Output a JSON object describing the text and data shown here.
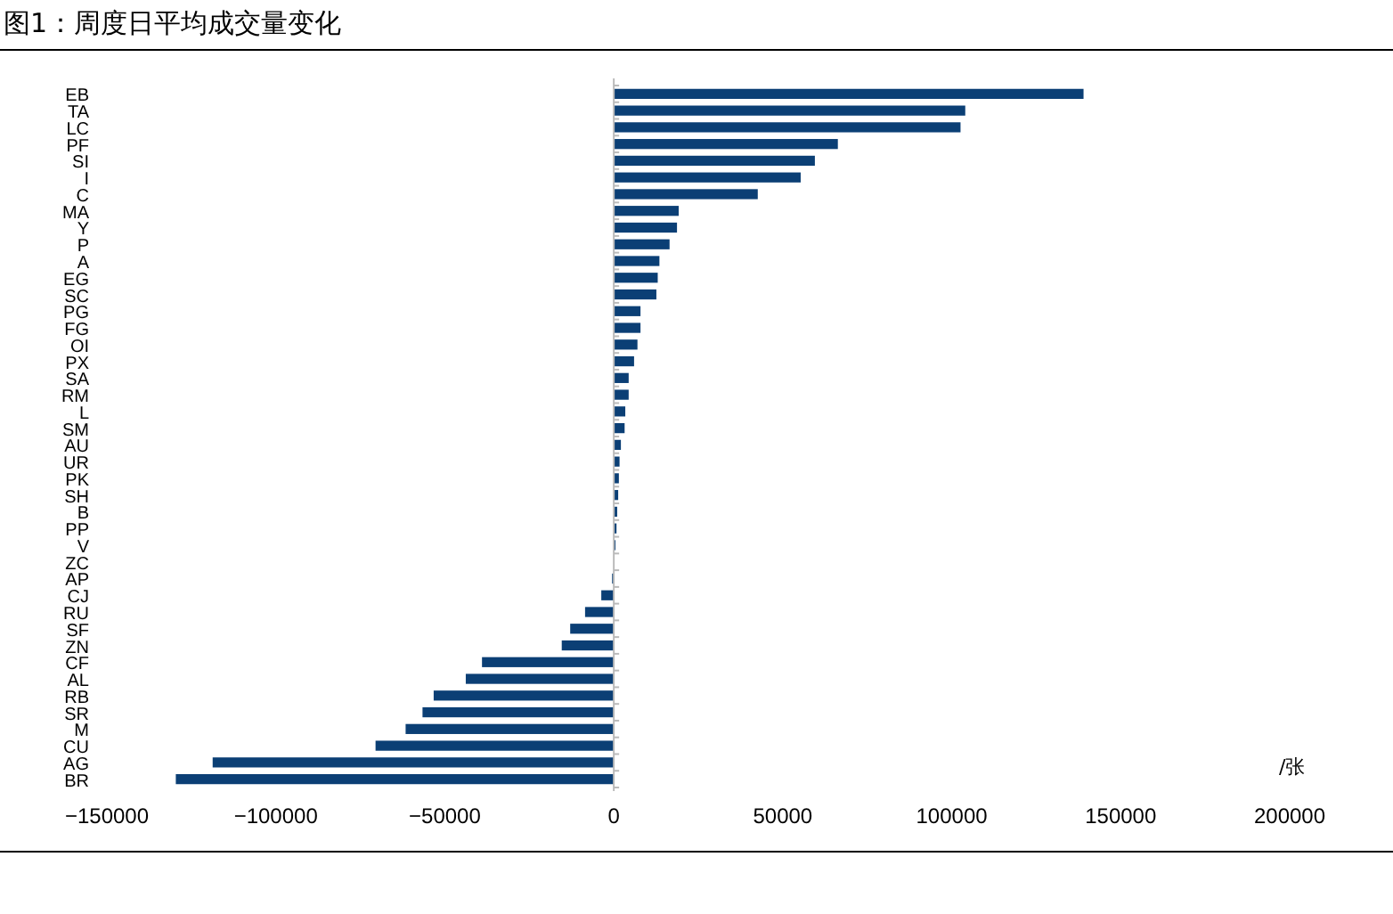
{
  "chart_data": {
    "type": "bar",
    "orientation": "horizontal",
    "title": "图1：周度日平均成交量变化",
    "annotations": [
      "/张"
    ],
    "categories": [
      "EB",
      "TA",
      "LC",
      "PF",
      "SI",
      "I",
      "C",
      "MA",
      "Y",
      "P",
      "A",
      "EG",
      "SC",
      "PG",
      "FG",
      "OI",
      "PX",
      "SA",
      "RM",
      "L",
      "SM",
      "AU",
      "UR",
      "PK",
      "SH",
      "B",
      "PP",
      "V",
      "ZC",
      "AP",
      "CJ",
      "RU",
      "SF",
      "ZN",
      "CF",
      "AL",
      "RB",
      "SR",
      "M",
      "CU",
      "AG",
      "BR"
    ],
    "values": [
      139000,
      104000,
      102600,
      66300,
      59500,
      55300,
      42600,
      19200,
      18700,
      16500,
      13500,
      13000,
      12600,
      7900,
      7900,
      7000,
      6000,
      4400,
      4400,
      3400,
      3200,
      2100,
      1700,
      1500,
      1300,
      1000,
      800,
      500,
      null,
      -500,
      -3700,
      -8500,
      -12900,
      -15400,
      -39000,
      -43800,
      -53300,
      -56600,
      -61600,
      -70500,
      -118700,
      -129600
    ],
    "color": "#0b3f75",
    "xlim": [
      -150000,
      200000
    ],
    "xticks": [
      -150000,
      -100000,
      -50000,
      0,
      50000,
      100000,
      150000,
      200000
    ]
  }
}
